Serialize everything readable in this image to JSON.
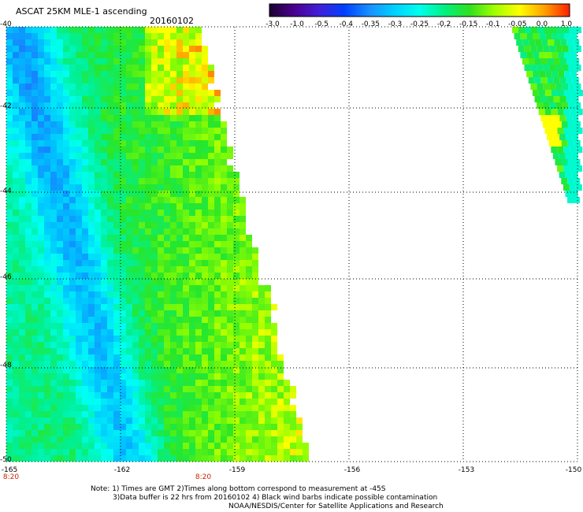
{
  "title": "ASCAT 25KM MLE-1 ascending",
  "date": "20160102",
  "colorbar": {
    "labels": [
      "-3.0",
      "-1.0",
      "-0.5",
      "-0.4",
      "-0.35",
      "-0.3",
      "-0.25",
      "-0.2",
      "-0.15",
      "-0.1",
      "-0.05",
      "0.0",
      "1.0"
    ],
    "colors": [
      "#1a0030",
      "#4a0090",
      "#4020d8",
      "#0040ff",
      "#1890ff",
      "#00d0ff",
      "#00ffee",
      "#00f080",
      "#30e020",
      "#a0ff00",
      "#ffff00",
      "#ffa000",
      "#ff2000"
    ]
  },
  "axes": {
    "lat_labels": [
      "-40",
      "-42",
      "-44",
      "-46",
      "-48",
      "-50"
    ],
    "lon_labels": [
      "-165",
      "-162",
      "-159",
      "-156",
      "-153",
      "-150"
    ],
    "time_labels": [
      "8:20",
      "8:20"
    ]
  },
  "notes": {
    "line1": "Note: 1) Times are GMT 2)Times along bottom correspond to measurement at -45S",
    "line2": "3)Data buffer is 22 hrs from 20160102 4) Black wind barbs indicate possible contamination",
    "line3": "NOAA/NESDIS/Center for Satellite Applications and Research"
  }
}
